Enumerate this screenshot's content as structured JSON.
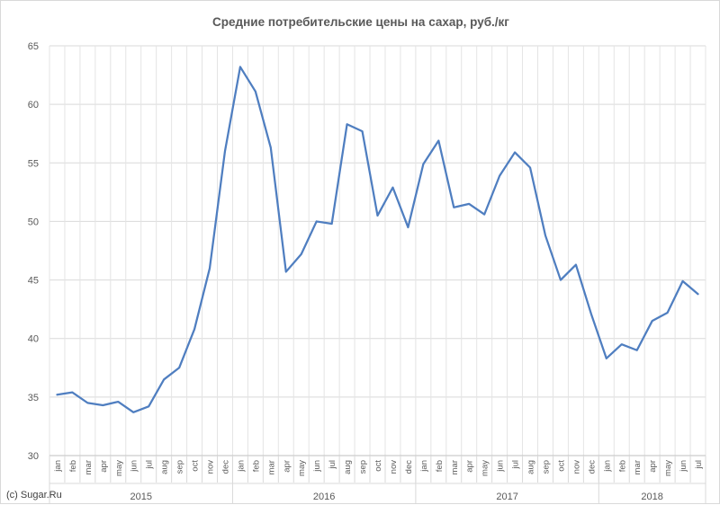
{
  "chart_data": {
    "type": "line",
    "title": "Средние потребительские цены на сахар, руб./кг",
    "ylim": [
      30,
      65
    ],
    "y_ticks": [
      30,
      35,
      40,
      45,
      50,
      55,
      60,
      65
    ],
    "grid": true,
    "legend": "none",
    "line_color": "#4f7ec0",
    "months": [
      "jan",
      "feb",
      "mar",
      "apr",
      "may",
      "jun",
      "jul",
      "aug",
      "sep",
      "oct",
      "nov",
      "dec",
      "jan",
      "feb",
      "mar",
      "apr",
      "may",
      "jun",
      "jul",
      "aug",
      "sep",
      "oct",
      "nov",
      "dec",
      "jan",
      "feb",
      "mar",
      "apr",
      "may",
      "jun",
      "jul",
      "aug",
      "sep",
      "oct",
      "nov",
      "dec",
      "jan",
      "feb",
      "mar",
      "apr",
      "may",
      "jun",
      "jul"
    ],
    "years": [
      {
        "label": "2015",
        "months": 12
      },
      {
        "label": "2016",
        "months": 12
      },
      {
        "label": "2017",
        "months": 12
      },
      {
        "label": "2018",
        "months": 7
      }
    ],
    "series": [
      {
        "values": [
          35.2,
          35.4,
          34.5,
          34.3,
          34.6,
          33.7,
          34.2,
          36.5,
          37.5,
          40.8,
          46.0,
          56.0,
          63.2,
          61.1,
          56.3,
          45.7,
          47.2,
          50.0,
          49.8,
          58.3,
          57.7,
          50.5,
          52.9,
          49.5,
          54.9,
          56.9,
          51.2,
          51.5,
          50.6,
          53.9,
          55.9,
          54.6,
          48.8,
          45.0,
          46.3,
          42.1,
          38.3,
          39.5,
          39.0,
          41.5,
          42.2,
          44.9,
          43.8
        ]
      }
    ]
  },
  "credit": "(c) Sugar.Ru"
}
